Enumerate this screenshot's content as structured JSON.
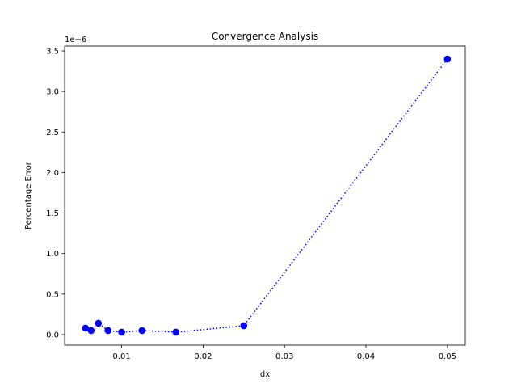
{
  "chart_data": {
    "type": "line",
    "title": "Convergence Analysis",
    "xlabel": "dx",
    "ylabel": "Percentage Error",
    "y_offset_label": "1e−6",
    "xlim": [
      0.003,
      0.0522
    ],
    "ylim": [
      -0.13,
      3.56
    ],
    "x_ticks": [
      0.01,
      0.02,
      0.03,
      0.04,
      0.05
    ],
    "x_tick_labels": [
      "0.01",
      "0.02",
      "0.03",
      "0.04",
      "0.05"
    ],
    "y_ticks": [
      0.0,
      0.5,
      1.0,
      1.5,
      2.0,
      2.5,
      3.0,
      3.5
    ],
    "y_tick_labels": [
      "0.0",
      "0.5",
      "1.0",
      "1.5",
      "2.0",
      "2.5",
      "3.0",
      "3.5"
    ],
    "grid": false,
    "series": [
      {
        "name": "Percentage Error",
        "color": "#0000ff",
        "line_style": "dotted",
        "marker": "circle",
        "x": [
          0.05,
          0.025,
          0.016667,
          0.0125,
          0.01,
          0.008333,
          0.007143,
          0.00625,
          0.005556
        ],
        "y": [
          3.4,
          0.11,
          0.03,
          0.05,
          0.03,
          0.05,
          0.14,
          0.05,
          0.08
        ]
      }
    ]
  }
}
